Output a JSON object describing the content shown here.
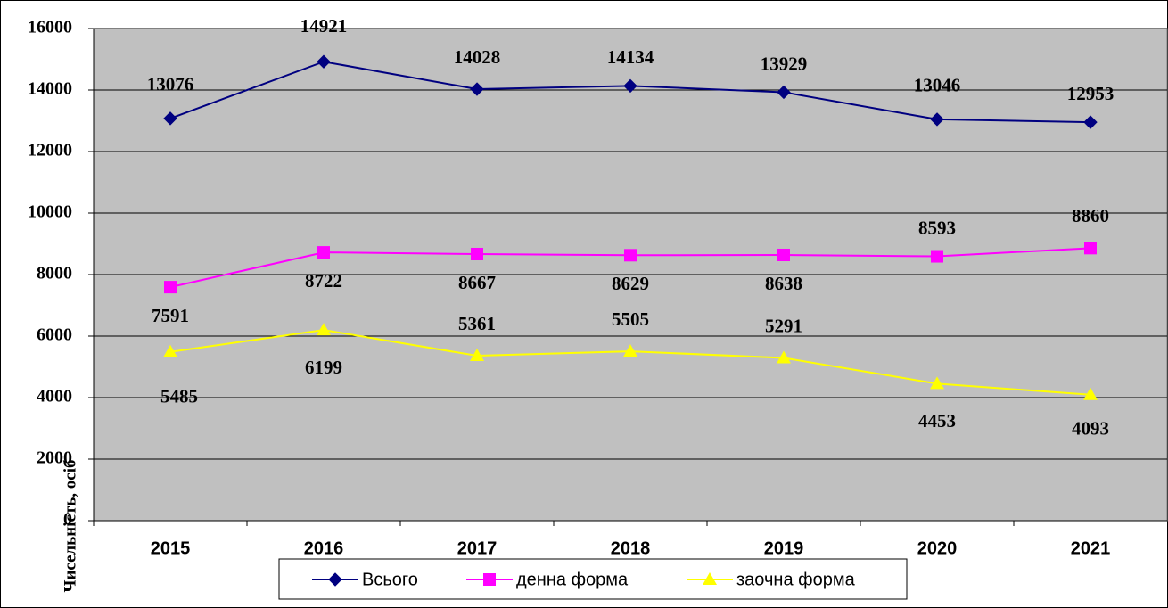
{
  "chart_data": {
    "type": "line",
    "y_label": "Чисельність, осіб",
    "categories": [
      "2015",
      "2016",
      "2017",
      "2018",
      "2019",
      "2020",
      "2021"
    ],
    "series": [
      {
        "name": "Всього",
        "color": "#000080",
        "values": [
          13076,
          14921,
          14028,
          14134,
          13929,
          13046,
          12953
        ]
      },
      {
        "name": "денна форма",
        "color": "#ff00ff",
        "values": [
          7591,
          8722,
          8667,
          8629,
          8638,
          8593,
          8860
        ]
      },
      {
        "name": "заочна форма",
        "color": "#ffff00",
        "values": [
          5485,
          6199,
          5361,
          5505,
          5291,
          4453,
          4093
        ]
      }
    ],
    "ylim": [
      0,
      16000
    ],
    "yticks": [
      0,
      2000,
      4000,
      6000,
      8000,
      10000,
      12000,
      14000,
      16000
    ],
    "grid": true,
    "legend": "bottom"
  }
}
